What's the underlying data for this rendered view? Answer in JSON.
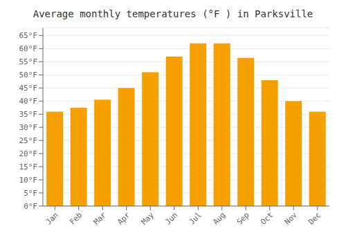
{
  "chart_data": {
    "type": "bar",
    "title": "Average monthly temperatures (°F ) in Parksville",
    "categories": [
      "Jan",
      "Feb",
      "Mar",
      "Apr",
      "May",
      "Jun",
      "Jul",
      "Aug",
      "Sep",
      "Oct",
      "Nov",
      "Dec"
    ],
    "values": [
      36,
      37.5,
      40.5,
      45,
      51,
      57,
      62,
      62,
      56.5,
      48,
      40,
      36
    ],
    "color": "#F5A000",
    "ylim": [
      0,
      68
    ],
    "yticks": [
      {
        "value": 0,
        "label": "0°F"
      },
      {
        "value": 5,
        "label": "5°F"
      },
      {
        "value": 10,
        "label": "10°F"
      },
      {
        "value": 15,
        "label": "15°F"
      },
      {
        "value": 20,
        "label": "20°F"
      },
      {
        "value": 25,
        "label": "25°F"
      },
      {
        "value": 30,
        "label": "30°F"
      },
      {
        "value": 35,
        "label": "35°F"
      },
      {
        "value": 40,
        "label": "40°F"
      },
      {
        "value": 45,
        "label": "45°F"
      },
      {
        "value": 50,
        "label": "50°F"
      },
      {
        "value": 55,
        "label": "55°F"
      },
      {
        "value": 60,
        "label": "60°F"
      },
      {
        "value": 65,
        "label": "65°F"
      }
    ],
    "grid": true
  }
}
